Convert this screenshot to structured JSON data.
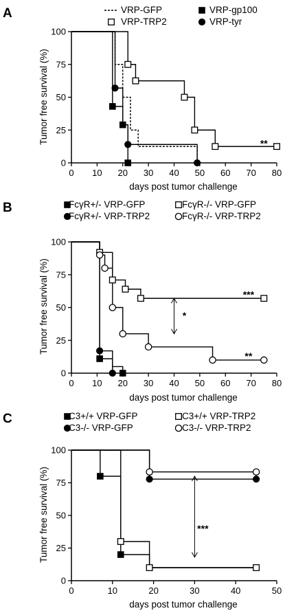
{
  "chart_data": [
    {
      "panel_label": "A",
      "type": "line",
      "step": true,
      "xlabel": "days post tumor challenge",
      "ylabel": "Tumor free survival (%)",
      "xlim": [
        0,
        80
      ],
      "ylim": [
        0,
        100
      ],
      "xticks": [
        "0",
        "10",
        "20",
        "30",
        "40",
        "50",
        "60",
        "70",
        "80"
      ],
      "yticks": [
        "0",
        "25",
        "50",
        "75",
        "100"
      ],
      "legend_position": "top",
      "series": [
        {
          "name": "VRP-GFP",
          "line": "dashed",
          "marker": "none",
          "color": "#000000",
          "x": [
            0,
            17,
            20,
            23,
            26,
            49
          ],
          "y": [
            100,
            75,
            50,
            25,
            12.5,
            0
          ],
          "marker_x": [],
          "marker_y": []
        },
        {
          "name": "VRP-gp100",
          "line": "solid",
          "marker": "square-filled",
          "color": "#000000",
          "x": [
            0,
            16,
            20,
            22
          ],
          "y": [
            100,
            43,
            29,
            0
          ],
          "marker_x": [
            16,
            20,
            22
          ],
          "marker_y": [
            43,
            29,
            0
          ]
        },
        {
          "name": "VRP-TRP2",
          "line": "solid",
          "marker": "square-open",
          "color": "#000000",
          "x": [
            0,
            22,
            25,
            44,
            48,
            56,
            80
          ],
          "y": [
            100,
            75,
            62.5,
            50,
            25,
            12.5,
            12.5
          ],
          "marker_x": [
            22,
            25,
            44,
            48,
            56,
            80
          ],
          "marker_y": [
            75,
            62.5,
            50,
            25,
            12.5,
            12.5
          ]
        },
        {
          "name": "VRP-tyr",
          "line": "solid",
          "marker": "circle-filled",
          "color": "#000000",
          "x": [
            0,
            17,
            20,
            22,
            49
          ],
          "y": [
            100,
            57,
            29,
            14,
            0
          ],
          "marker_x": [
            17,
            22,
            49
          ],
          "marker_y": [
            57,
            14,
            0
          ]
        }
      ],
      "annotations": [
        {
          "text": "**",
          "x": 75,
          "y": 15
        }
      ],
      "arrows": []
    },
    {
      "panel_label": "B",
      "type": "line",
      "step": true,
      "xlabel": "days post tumor challenge",
      "ylabel": "Tumor free survival (%)",
      "xlim": [
        0,
        80
      ],
      "ylim": [
        0,
        100
      ],
      "xticks": [
        "0",
        "10",
        "20",
        "30",
        "40",
        "50",
        "60",
        "70",
        "80"
      ],
      "yticks": [
        "0",
        "25",
        "50",
        "75",
        "100"
      ],
      "legend_position": "top",
      "series": [
        {
          "name": "FcγR+/- VRP-GFP",
          "line": "solid",
          "marker": "square-filled",
          "color": "#000000",
          "x": [
            0,
            11,
            16,
            20
          ],
          "y": [
            100,
            11,
            5,
            0
          ],
          "marker_x": [
            11,
            20
          ],
          "marker_y": [
            11,
            0
          ]
        },
        {
          "name": "FcγR+/- VRP-TRP2",
          "line": "solid",
          "marker": "square-open",
          "color": "#000000",
          "x": [
            0,
            11,
            16,
            21,
            27,
            75
          ],
          "y": [
            100,
            92,
            71,
            64,
            57,
            57
          ],
          "marker_x": [
            11,
            16,
            21,
            27,
            75
          ],
          "marker_y": [
            92,
            71,
            64,
            57,
            57
          ]
        },
        {
          "name": "FcγR-/- VRP-GFP",
          "line": "solid",
          "marker": "circle-filled",
          "color": "#000000",
          "x": [
            0,
            11,
            16
          ],
          "y": [
            100,
            17,
            0
          ],
          "marker_x": [
            11,
            16
          ],
          "marker_y": [
            17,
            0
          ]
        },
        {
          "name": "FcγR-/- VRP-TRP2",
          "line": "solid",
          "marker": "circle-open",
          "color": "#000000",
          "x": [
            0,
            11,
            13,
            16,
            20,
            30,
            55,
            75
          ],
          "y": [
            100,
            90,
            80,
            50,
            30,
            20,
            10,
            10
          ],
          "marker_x": [
            11,
            13,
            16,
            20,
            30,
            55,
            75
          ],
          "marker_y": [
            90,
            80,
            50,
            30,
            20,
            10,
            10
          ]
        }
      ],
      "annotations": [
        {
          "text": "***",
          "x": 69,
          "y": 60
        },
        {
          "text": "**",
          "x": 69,
          "y": 13
        },
        {
          "text": "*",
          "x": 44,
          "y": 44
        }
      ],
      "arrows": [
        {
          "x": 40,
          "y1": 57,
          "y2": 30
        }
      ]
    },
    {
      "panel_label": "C",
      "type": "line",
      "step": true,
      "xlabel": "days post tumor challenge",
      "ylabel": "Tumor free survival (%)",
      "xlim": [
        0,
        50
      ],
      "ylim": [
        0,
        100
      ],
      "xticks": [
        "0",
        "10",
        "20",
        "30",
        "40",
        "50"
      ],
      "yticks": [
        "0",
        "25",
        "50",
        "75",
        "100"
      ],
      "legend_position": "top",
      "series": [
        {
          "name": "C3+/+ VRP-GFP",
          "line": "solid",
          "marker": "square-filled",
          "color": "#000000",
          "x": [
            0,
            7,
            12,
            19,
            45
          ],
          "y": [
            100,
            80,
            20,
            10,
            10
          ],
          "marker_x": [
            7,
            12
          ],
          "marker_y": [
            80,
            20
          ]
        },
        {
          "name": "C3-/- VRP-GFP",
          "line": "solid",
          "marker": "square-open",
          "color": "#000000",
          "x": [
            0,
            12,
            19,
            45
          ],
          "y": [
            100,
            30,
            10,
            10
          ],
          "marker_x": [
            12,
            19,
            45
          ],
          "marker_y": [
            30,
            10,
            10
          ]
        },
        {
          "name": "C3+/+ VRP-TRP2",
          "line": "solid",
          "marker": "circle-filled",
          "color": "#000000",
          "x": [
            0,
            19,
            45
          ],
          "y": [
            100,
            77.8,
            77.8
          ],
          "marker_x": [
            19,
            45
          ],
          "marker_y": [
            77.8,
            77.8
          ]
        },
        {
          "name": "C3-/- VRP-TRP2",
          "line": "solid",
          "marker": "circle-open",
          "color": "#000000",
          "x": [
            0,
            19,
            45
          ],
          "y": [
            100,
            83.3,
            83.3
          ],
          "marker_x": [
            19,
            45
          ],
          "marker_y": [
            83.3,
            83.3
          ]
        }
      ],
      "annotations": [
        {
          "text": "***",
          "x": 32,
          "y": 40
        }
      ],
      "arrows": [
        {
          "x": 30,
          "y1": 80,
          "y2": 18
        }
      ]
    }
  ]
}
